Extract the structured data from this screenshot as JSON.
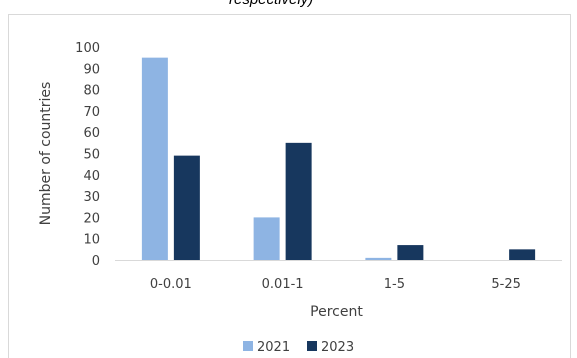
{
  "caption_fragment": "respectively)",
  "chart_data": {
    "type": "bar",
    "title": "",
    "xlabel": "Percent",
    "ylabel": "Number of countries",
    "categories": [
      "0-0.01",
      "0.01-1",
      "1-5",
      "5-25"
    ],
    "ylim": [
      0,
      100
    ],
    "yticks": [
      0,
      10,
      20,
      30,
      40,
      50,
      60,
      70,
      80,
      90,
      100
    ],
    "grid": false,
    "legend_position": "bottom",
    "series": [
      {
        "name": "2021",
        "values": [
          95,
          20,
          1,
          0
        ],
        "color": "#8eb4e3"
      },
      {
        "name": "2023",
        "values": [
          49,
          55,
          7,
          5
        ],
        "color": "#17375e"
      }
    ]
  }
}
